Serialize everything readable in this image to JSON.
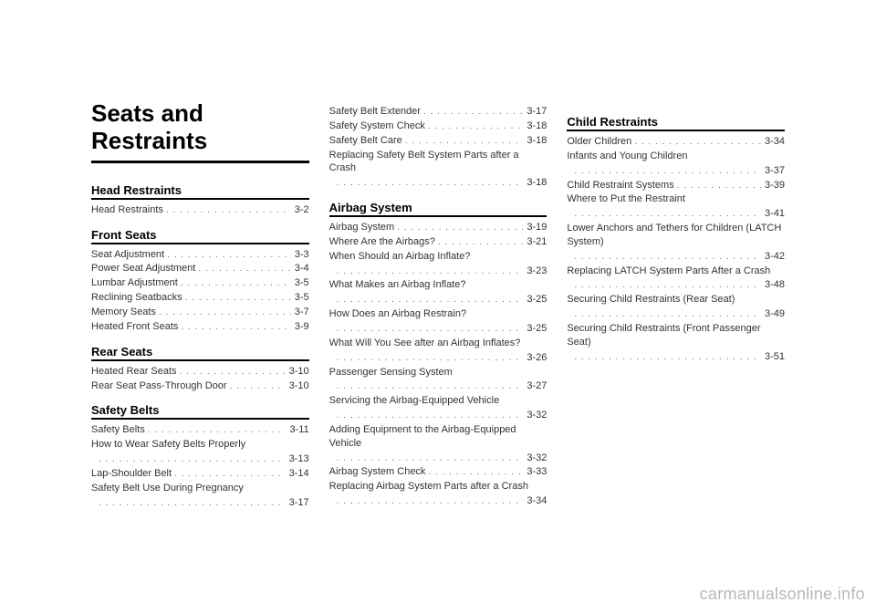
{
  "chapter_title": "Seats and Restraints",
  "watermark": "carmanualsonline.info",
  "columns": [
    {
      "chapter": true,
      "sections": [
        {
          "heading": "Head Restraints",
          "entries": [
            {
              "label": "Head Restraints",
              "page": "3-2"
            }
          ]
        },
        {
          "heading": "Front Seats",
          "entries": [
            {
              "label": "Seat Adjustment",
              "page": "3-3"
            },
            {
              "label": "Power Seat Adjustment",
              "page": "3-4"
            },
            {
              "label": "Lumbar Adjustment",
              "page": "3-5"
            },
            {
              "label": "Reclining Seatbacks",
              "page": "3-5"
            },
            {
              "label": "Memory Seats",
              "page": "3-7"
            },
            {
              "label": "Heated Front Seats",
              "page": "3-9"
            }
          ]
        },
        {
          "heading": "Rear Seats",
          "entries": [
            {
              "label": "Heated Rear Seats",
              "page": "3-10"
            },
            {
              "label": "Rear Seat Pass-Through Door",
              "page": "3-10"
            }
          ]
        },
        {
          "heading": "Safety Belts",
          "entries": [
            {
              "label": "Safety Belts",
              "page": "3-11"
            },
            {
              "label": "How to Wear Safety Belts Properly",
              "page": "3-13",
              "twoLine": true
            },
            {
              "label": "Lap-Shoulder Belt",
              "page": "3-14"
            },
            {
              "label": "Safety Belt Use During Pregnancy",
              "page": "3-17",
              "twoLine": true
            }
          ]
        }
      ]
    },
    {
      "sections": [
        {
          "heading": null,
          "entries": [
            {
              "label": "Safety Belt Extender",
              "page": "3-17"
            },
            {
              "label": "Safety System Check",
              "page": "3-18"
            },
            {
              "label": "Safety Belt Care",
              "page": "3-18"
            },
            {
              "label": "Replacing Safety Belt System Parts after a Crash",
              "page": "3-18",
              "twoLine": true
            }
          ]
        },
        {
          "heading": "Airbag System",
          "entries": [
            {
              "label": "Airbag System",
              "page": "3-19"
            },
            {
              "label": "Where Are the Airbags?",
              "page": "3-21"
            },
            {
              "label": "When Should an Airbag Inflate?",
              "page": "3-23",
              "twoLine": true
            },
            {
              "label": "What Makes an Airbag Inflate?",
              "page": "3-25",
              "twoLine": true
            },
            {
              "label": "How Does an Airbag Restrain?",
              "page": "3-25",
              "twoLine": true
            },
            {
              "label": "What Will You See after an Airbag Inflates?",
              "page": "3-26",
              "twoLine": true
            },
            {
              "label": "Passenger Sensing System",
              "page": "3-27",
              "twoLine": true
            },
            {
              "label": "Servicing the Airbag-Equipped Vehicle",
              "page": "3-32",
              "twoLine": true
            },
            {
              "label": "Adding Equipment to the Airbag-Equipped Vehicle",
              "page": "3-32",
              "twoLine": true
            },
            {
              "label": "Airbag System Check",
              "page": "3-33"
            },
            {
              "label": "Replacing Airbag System Parts after a Crash",
              "page": "3-34",
              "twoLine": true
            }
          ]
        }
      ]
    },
    {
      "sections": [
        {
          "heading": "Child Restraints",
          "entries": [
            {
              "label": "Older Children",
              "page": "3-34"
            },
            {
              "label": "Infants and Young Children",
              "page": "3-37",
              "twoLine": true
            },
            {
              "label": "Child Restraint Systems",
              "page": "3-39"
            },
            {
              "label": "Where to Put the Restraint",
              "page": "3-41",
              "twoLine": true
            },
            {
              "label": "Lower Anchors and Tethers for Children (LATCH System)",
              "page": "3-42",
              "twoLine": true
            },
            {
              "label": "Replacing LATCH System Parts After a Crash",
              "page": "3-48",
              "twoLine": true
            },
            {
              "label": "Securing Child Restraints (Rear Seat)",
              "page": "3-49",
              "twoLine": true
            },
            {
              "label": "Securing Child Restraints (Front Passenger Seat)",
              "page": "3-51",
              "twoLine": true
            }
          ]
        }
      ]
    }
  ]
}
